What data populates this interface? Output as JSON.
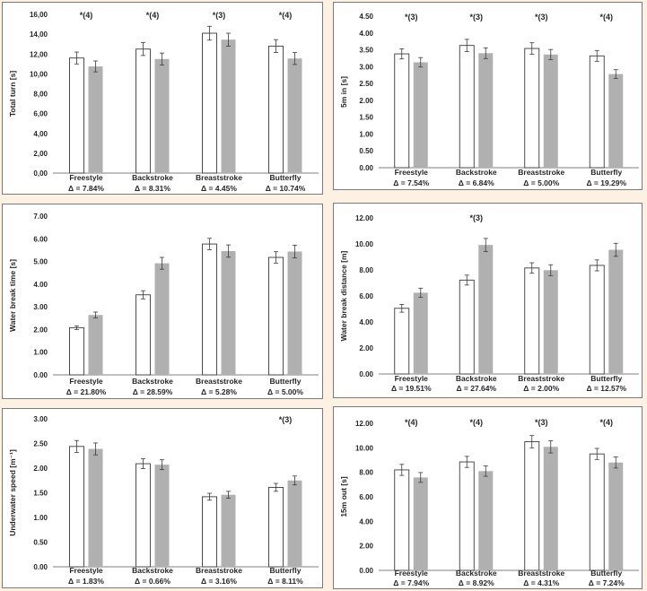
{
  "colors": {
    "series_a": "#ffffff",
    "series_a_stroke": "#3a3a3a",
    "series_b": "#b0b0b0",
    "axis": "#7f7f7f",
    "error_bar": "#3a3a3a"
  },
  "chart_data": [
    {
      "type": "bar",
      "ylabel": "Total turn [s]",
      "ylim": [
        0,
        16
      ],
      "yticks": [
        "0,00",
        "2,00",
        "4,00",
        "6,00",
        "8,00",
        "10,00",
        "12,00",
        "14,00",
        "16,00"
      ],
      "categories": [
        "Freestyle",
        "Backstroke",
        "Breaststroke",
        "Butterfly"
      ],
      "deltas": [
        "Δ = 7.84%",
        "Δ = 8.31%",
        "Δ = 4.45%",
        "Δ = 10.74%"
      ],
      "annotations": [
        "*(4)",
        "*(4)",
        "*(3)",
        "*(4)"
      ],
      "series": [
        {
          "values": [
            11.6,
            12.5,
            14.1,
            12.8
          ],
          "errors": [
            0.6,
            0.65,
            0.7,
            0.65
          ]
        },
        {
          "values": [
            10.75,
            11.5,
            13.45,
            11.55
          ],
          "errors": [
            0.55,
            0.6,
            0.65,
            0.6
          ]
        }
      ]
    },
    {
      "type": "bar",
      "ylabel": "5m in [s]",
      "ylim": [
        0,
        4.5
      ],
      "yticks": [
        "0.00",
        "0.50",
        "1.00",
        "1.50",
        "2.00",
        "2.50",
        "3.00",
        "3.50",
        "4.00",
        "4.50"
      ],
      "categories": [
        "Freestyle",
        "Backstroke",
        "Breaststroke",
        "Butterfly"
      ],
      "deltas": [
        "Δ = 7.54%",
        "Δ = 6.84%",
        "Δ = 5.00%",
        "Δ = 19.29%"
      ],
      "annotations": [
        "*(3)",
        "*(3)",
        "*(3)",
        "*(4)"
      ],
      "series": [
        {
          "values": [
            3.38,
            3.63,
            3.54,
            3.32
          ],
          "errors": [
            0.15,
            0.18,
            0.17,
            0.16
          ]
        },
        {
          "values": [
            3.13,
            3.4,
            3.36,
            2.78
          ],
          "errors": [
            0.14,
            0.16,
            0.15,
            0.13
          ]
        }
      ]
    },
    {
      "type": "bar",
      "ylabel": "Water break time [s]",
      "ylim": [
        0,
        7
      ],
      "yticks": [
        "0.00",
        "1.00",
        "2.00",
        "3.00",
        "4.00",
        "5.00",
        "6.00",
        "7.00"
      ],
      "categories": [
        "Freestyle",
        "Backstroke",
        "Breaststroke",
        "Butterfly"
      ],
      "deltas": [
        "Δ = 21.80%",
        "Δ = 28.59%",
        "Δ = 5.28%",
        "Δ = 5.00%"
      ],
      "annotations": [],
      "series": [
        {
          "values": [
            2.08,
            3.53,
            5.77,
            5.18
          ],
          "errors": [
            0.08,
            0.18,
            0.25,
            0.25
          ]
        },
        {
          "values": [
            2.64,
            4.92,
            5.46,
            5.44
          ],
          "errors": [
            0.13,
            0.26,
            0.27,
            0.28
          ]
        }
      ]
    },
    {
      "type": "bar",
      "ylabel": "Water break distance [m]",
      "ylim": [
        0,
        12
      ],
      "yticks": [
        "0.00",
        "2.00",
        "4.00",
        "6.00",
        "8.00",
        "10.00",
        "12.00"
      ],
      "categories": [
        "Freestyle",
        "Backstroke",
        "Breaststroke",
        "Butterfly"
      ],
      "deltas": [
        "Δ = 19.51%",
        "Δ = 27.64%",
        "Δ = 2.00%",
        "Δ = 12.57%"
      ],
      "annotations": [
        "",
        "*(3)",
        "",
        ""
      ],
      "series": [
        {
          "values": [
            5.05,
            7.22,
            8.15,
            8.35
          ],
          "errors": [
            0.3,
            0.38,
            0.4,
            0.42
          ]
        },
        {
          "values": [
            6.25,
            9.92,
            7.98,
            9.55
          ],
          "errors": [
            0.35,
            0.5,
            0.42,
            0.5
          ]
        }
      ]
    },
    {
      "type": "bar",
      "ylabel": "Underwater  speed  [m⁻¹]",
      "ylim": [
        0,
        3
      ],
      "yticks": [
        "0.00",
        "0.50",
        "1.00",
        "1.50",
        "2.00",
        "2.50",
        "3.00"
      ],
      "categories": [
        "Freestyle",
        "Backstroke",
        "Breaststroke",
        "Butterfly"
      ],
      "deltas": [
        "Δ = 1.83%",
        "Δ = 0.66%",
        "Δ = 3.16%",
        "Δ = 8.11%"
      ],
      "annotations": [
        "",
        "",
        "",
        "*(3)"
      ],
      "series": [
        {
          "values": [
            2.44,
            2.09,
            1.42,
            1.61
          ],
          "errors": [
            0.12,
            0.1,
            0.07,
            0.08
          ]
        },
        {
          "values": [
            2.39,
            2.07,
            1.46,
            1.75
          ],
          "errors": [
            0.12,
            0.1,
            0.07,
            0.09
          ]
        }
      ]
    },
    {
      "type": "bar",
      "ylabel": "15m out [s]",
      "ylim": [
        0,
        12
      ],
      "yticks": [
        "0.00",
        "2.00",
        "4.00",
        "6.00",
        "8.00",
        "10.00",
        "12.00"
      ],
      "categories": [
        "Freestyle",
        "Backstroke",
        "Breaststroke",
        "Butterfly"
      ],
      "deltas": [
        "Δ = 7.94%",
        "Δ = 8.92%",
        "Δ = 4.31%",
        "Δ = 7.24%"
      ],
      "annotations": [
        "*(4)",
        "*(4)",
        "*(3)",
        "*(4)"
      ],
      "series": [
        {
          "values": [
            8.2,
            8.85,
            10.5,
            9.5
          ],
          "errors": [
            0.45,
            0.45,
            0.5,
            0.45
          ]
        },
        {
          "values": [
            7.58,
            8.1,
            10.08,
            8.8
          ],
          "errors": [
            0.4,
            0.42,
            0.5,
            0.45
          ]
        }
      ]
    }
  ]
}
